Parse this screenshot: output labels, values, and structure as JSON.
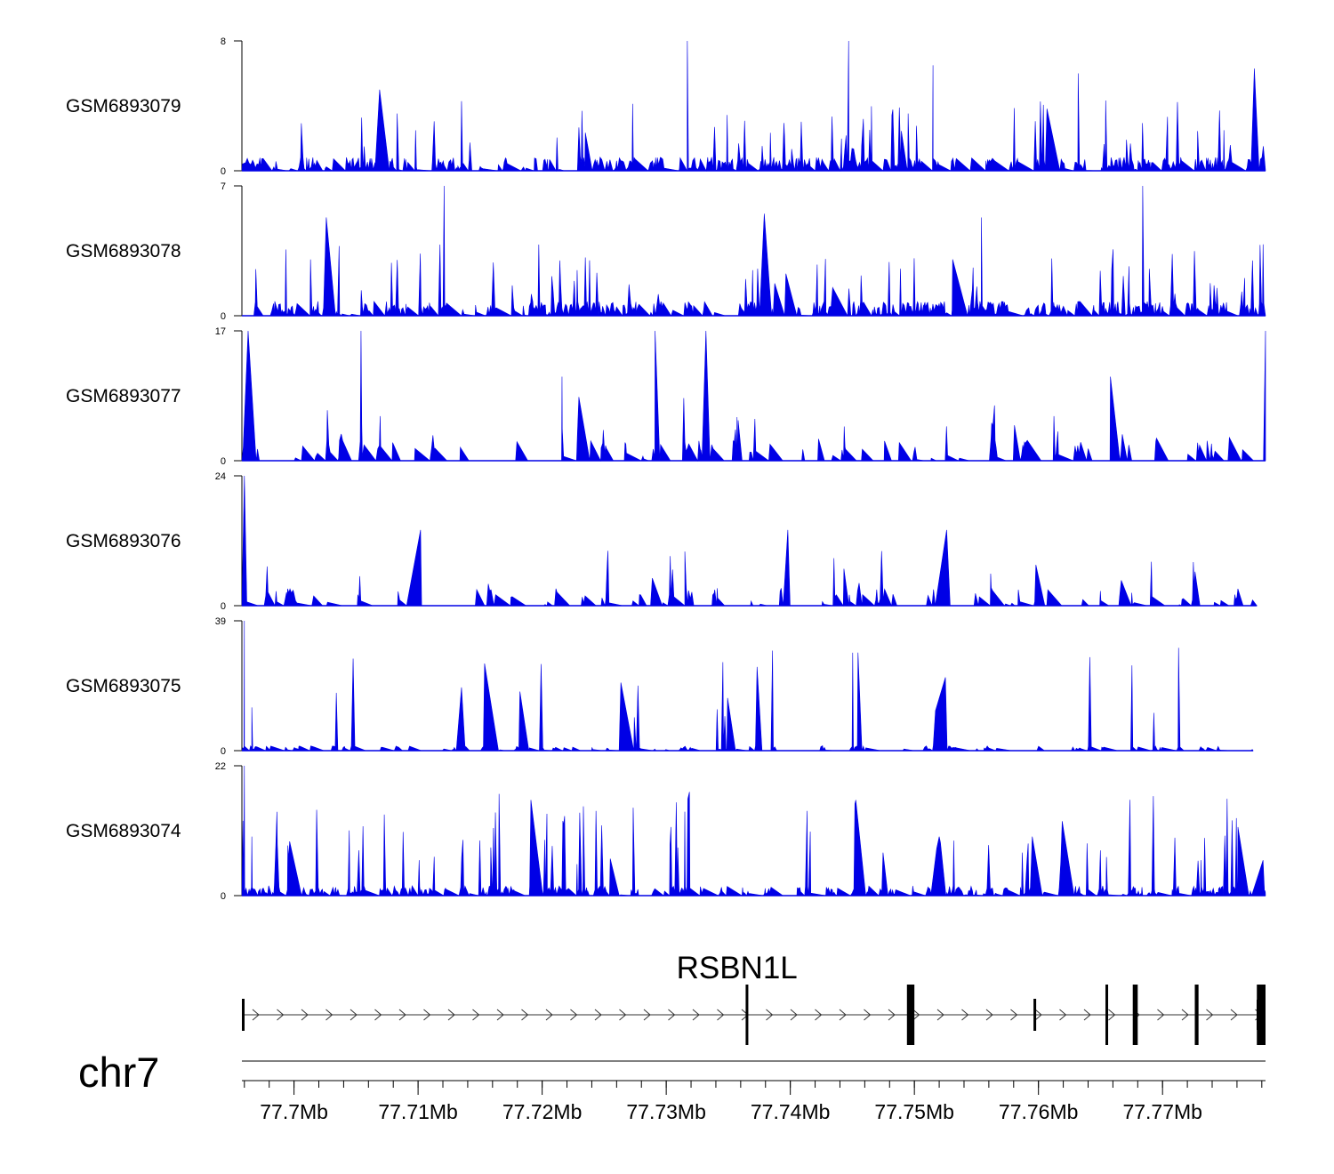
{
  "chart_data": {
    "type": "area",
    "figure": "genomic coverage tracks",
    "chromosome": "chr7",
    "x_unit": "Mb",
    "xlim": [
      77.6958,
      77.7783
    ],
    "x_ticks": [
      77.7,
      77.71,
      77.72,
      77.73,
      77.74,
      77.75,
      77.76,
      77.77
    ],
    "x_tick_labels": [
      "77.7Mb",
      "77.71Mb",
      "77.72Mb",
      "77.73Mb",
      "77.74Mb",
      "77.75Mb",
      "77.76Mb",
      "77.77Mb"
    ],
    "fill_color": "#0000e6",
    "tracks": [
      {
        "name": "GSM6893079",
        "ymax": 8,
        "ymax_label": "8",
        "ymin_label": "0",
        "seed": 79,
        "noise": 1.4,
        "spike_prob": 0.1,
        "spike_scale": 0.55,
        "gap_prob": 0.1,
        "peaks": [
          [
            77.7069,
            5.0
          ],
          [
            77.7317,
            8.0
          ],
          [
            77.7447,
            8.0
          ],
          [
            77.7515,
            6.5
          ],
          [
            77.7632,
            6.0
          ],
          [
            77.7774,
            6.3
          ]
        ],
        "end": 77.7783
      },
      {
        "name": "GSM6893078",
        "ymax": 7,
        "ymax_label": "7",
        "ymin_label": "0",
        "seed": 78,
        "noise": 1.3,
        "spike_prob": 0.12,
        "spike_scale": 0.55,
        "gap_prob": 0.1,
        "peaks": [
          [
            77.7121,
            7.0
          ],
          [
            77.7379,
            5.5
          ],
          [
            77.7684,
            7.0
          ],
          [
            77.7026,
            5.3
          ],
          [
            77.7554,
            5.3
          ]
        ],
        "end": 77.7783
      },
      {
        "name": "GSM6893077",
        "ymax": 17,
        "ymax_label": "17",
        "ymin_label": "0",
        "seed": 77,
        "noise": 4.5,
        "spike_prob": 0.25,
        "spike_scale": 0.5,
        "gap_prob": 0.45,
        "peaks": [
          [
            77.6963,
            17.0
          ],
          [
            77.7054,
            17.0
          ],
          [
            77.7291,
            17.0
          ],
          [
            77.7332,
            17.0
          ],
          [
            77.7783,
            17.0
          ],
          [
            77.7216,
            11.0
          ],
          [
            77.7658,
            11.0
          ]
        ],
        "end": 77.7783
      },
      {
        "name": "GSM6893076",
        "ymax": 24,
        "ymax_label": "24",
        "ymin_label": "0",
        "seed": 76,
        "noise": 5.5,
        "spike_prob": 0.2,
        "spike_scale": 0.45,
        "gap_prob": 0.45,
        "peaks": [
          [
            77.696,
            24.0
          ],
          [
            77.7102,
            14.0
          ],
          [
            77.7398,
            14.0
          ],
          [
            77.7526,
            14.0
          ],
          [
            77.7315,
            10.0
          ]
        ],
        "end": 77.7776
      },
      {
        "name": "GSM6893075",
        "ymax": 39,
        "ymax_label": "39",
        "ymin_label": "0",
        "seed": 75,
        "noise": 2.5,
        "spike_prob": 0.12,
        "spike_scale": 0.8,
        "gap_prob": 0.3,
        "peaks": [
          [
            77.696,
            39.0
          ],
          [
            77.6966,
            13.0
          ],
          [
            77.7135,
            19.0
          ],
          [
            77.7525,
            22.0
          ],
          [
            77.7517,
            12.0
          ]
        ],
        "end": 77.7773
      },
      {
        "name": "GSM6893074",
        "ymax": 22,
        "ymax_label": "22",
        "ymin_label": "0",
        "seed": 74,
        "noise": 2.8,
        "spike_prob": 0.15,
        "spike_scale": 0.8,
        "gap_prob": 0.12,
        "peaks": [
          [
            77.696,
            22.0
          ],
          [
            77.6966,
            10.0
          ],
          [
            77.752,
            10.0
          ],
          [
            77.7518,
            8.0
          ],
          [
            77.7521,
            9.0
          ],
          [
            77.7595,
            10.0
          ],
          [
            77.7731,
            6.0
          ],
          [
            77.7781,
            6.0
          ]
        ],
        "end": 77.7783
      }
    ],
    "gene": {
      "name": "RSBN1L",
      "strand": "+",
      "start": 77.6958,
      "end": 77.7783,
      "exons": [
        {
          "start": 77.6958,
          "end": 77.696,
          "kind": "utr"
        },
        {
          "start": 77.7364,
          "end": 77.7366,
          "kind": "cds"
        },
        {
          "start": 77.7494,
          "end": 77.75,
          "kind": "cds"
        },
        {
          "start": 77.7596,
          "end": 77.7598,
          "kind": "utr"
        },
        {
          "start": 77.7654,
          "end": 77.7656,
          "kind": "cds"
        },
        {
          "start": 77.7676,
          "end": 77.768,
          "kind": "cds"
        },
        {
          "start": 77.7726,
          "end": 77.7729,
          "kind": "cds"
        },
        {
          "start": 77.7776,
          "end": 77.7783,
          "kind": "cds"
        }
      ]
    }
  }
}
